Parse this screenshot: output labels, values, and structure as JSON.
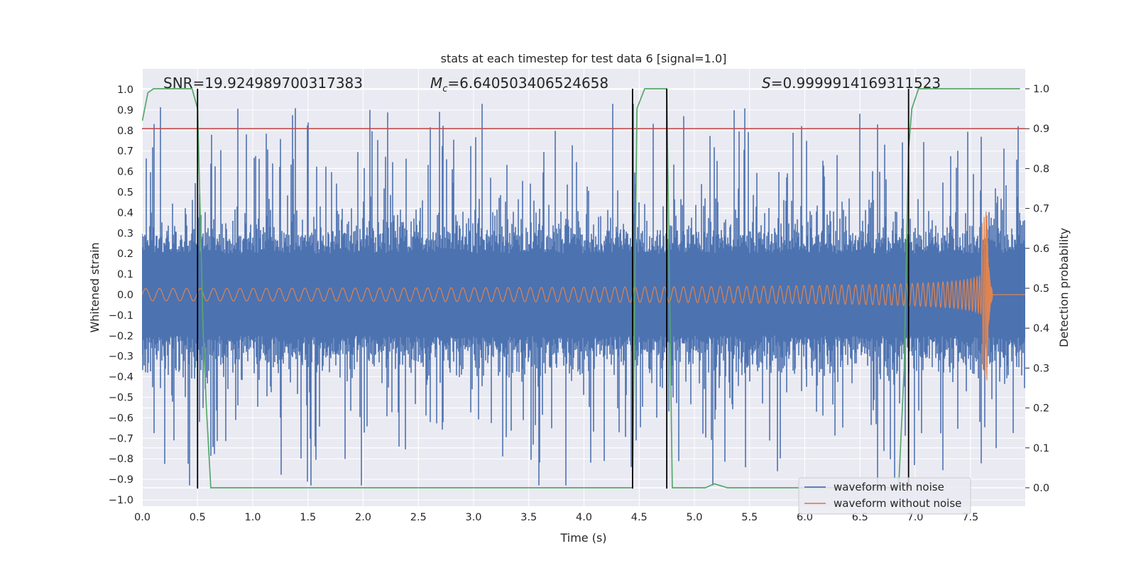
{
  "chart_data": {
    "type": "line",
    "title": "stats at each timestep for test data 6 [signal=1.0]",
    "xlabel": "Time (s)",
    "ylabel": "Whitened strain",
    "ylabel_right": "Detection probability",
    "xlim": [
      0.0,
      8.0
    ],
    "ylim": [
      -1.05,
      1.05
    ],
    "ylim_right": [
      -0.05,
      1.03
    ],
    "x_ticks": [
      "0.0",
      "0.5",
      "1.0",
      "1.5",
      "2.0",
      "2.5",
      "3.0",
      "3.5",
      "4.0",
      "4.5",
      "5.0",
      "5.5",
      "6.0",
      "6.5",
      "7.0",
      "7.5"
    ],
    "y_ticks": [
      "1.0",
      "0.9",
      "0.8",
      "0.7",
      "0.6",
      "0.5",
      "0.4",
      "0.3",
      "0.2",
      "0.1",
      "0.0",
      "−0.1",
      "−0.2",
      "−0.3",
      "−0.4",
      "−0.5",
      "−0.6",
      "−0.7",
      "−0.8",
      "−0.9",
      "−1.0"
    ],
    "y_ticks_right": [
      "1.0",
      "0.9",
      "0.8",
      "0.7",
      "0.6",
      "0.5",
      "0.4",
      "0.3",
      "0.2",
      "0.1",
      "0.0"
    ],
    "annotations": {
      "snr": "SNR=19.924989700317383",
      "mc_symbol": "M",
      "mc_sub": "c",
      "mc_value": "=6.640503406524658",
      "s_symbol": "S",
      "s_value": "=0.9999914169311523"
    },
    "threshold": {
      "value": 0.9,
      "axis": "right",
      "color": "#c44e52"
    },
    "vertical_lines": [
      0.5,
      4.44,
      4.75,
      6.94
    ],
    "series": [
      {
        "name": "waveform with noise",
        "color": "#4c72b0",
        "amplitude": 0.3,
        "spike_max": 0.92
      },
      {
        "name": "waveform without noise",
        "color": "#dd8452",
        "start_amplitude": 0.03,
        "peak_amplitude": 0.42,
        "merger_time": 7.65,
        "ringdown_end": 7.7
      },
      {
        "name": "detection probability",
        "color": "#55a868",
        "t": [
          0.0,
          0.05,
          0.1,
          0.2,
          0.45,
          0.5,
          0.55,
          0.58,
          0.62,
          1.8,
          4.44,
          4.48,
          4.55,
          4.75,
          4.8,
          4.85,
          4.9,
          5.1,
          5.18,
          5.3,
          6.85,
          6.9,
          6.94,
          6.97,
          7.03,
          7.95
        ],
        "p": [
          0.92,
          0.99,
          1.0,
          1.0,
          1.0,
          0.95,
          0.4,
          0.2,
          0.0,
          0.0,
          0.0,
          0.95,
          1.0,
          1.0,
          0.0,
          0.0,
          0.0,
          0.0,
          0.01,
          0.0,
          0.0,
          0.3,
          0.85,
          0.95,
          1.0,
          1.0
        ]
      }
    ],
    "legend": {
      "position": "lower-right",
      "entries": [
        "waveform with noise",
        "waveform without noise"
      ]
    },
    "grid": true,
    "colors": {
      "background": "#eaeaf2",
      "grid": "#ffffff",
      "text": "#262626",
      "event_line": "#000000"
    }
  }
}
